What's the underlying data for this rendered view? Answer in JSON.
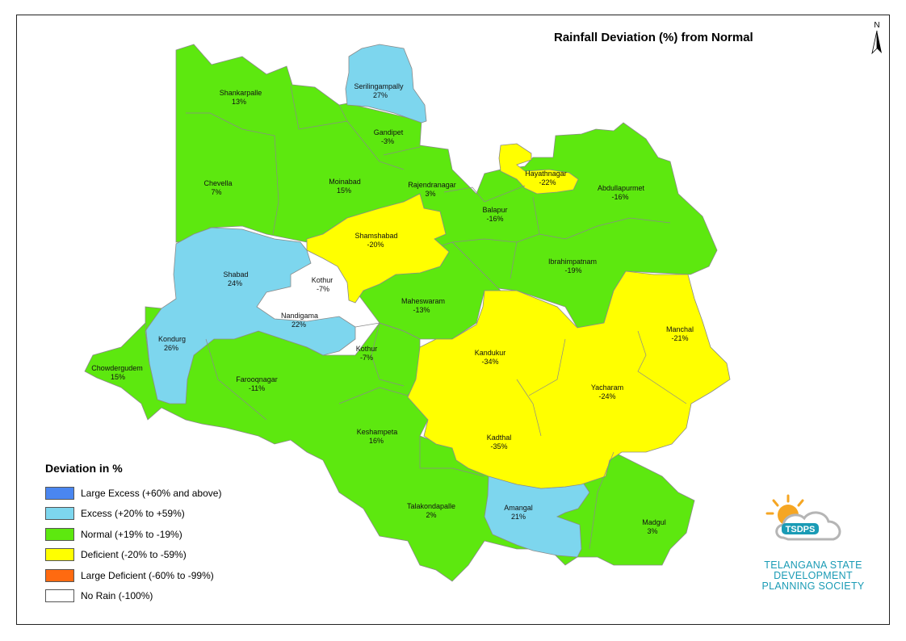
{
  "title": "Rainfall Deviation (%) from Normal",
  "north_label": "N",
  "colors": {
    "large_excess": "#4a86f0",
    "excess": "#7dd6ee",
    "normal": "#5de80f",
    "deficient": "#ffff00",
    "large_deficient": "#ff6a10",
    "no_rain": "#ffffff",
    "boundary": "#8a8a8a"
  },
  "legend": {
    "title": "Deviation in %",
    "items": [
      {
        "label": "Large Excess (+60% and above)",
        "color": "#4a86f0"
      },
      {
        "label": "Excess (+20% to +59%)",
        "color": "#7dd6ee"
      },
      {
        "label": "Normal (+19% to -19%)",
        "color": "#5de80f"
      },
      {
        "label": "Deficient (-20% to -59%)",
        "color": "#ffff00"
      },
      {
        "label": "Large Deficient (-60% to -99%)",
        "color": "#ff6a10"
      },
      {
        "label": "No Rain (-100%)",
        "color": "#ffffff"
      }
    ]
  },
  "mandals": [
    {
      "name": "Serilingampally",
      "value": "27%"
    },
    {
      "name": "Shankarpalle",
      "value": "13%"
    },
    {
      "name": "Gandipet",
      "value": "-3%"
    },
    {
      "name": "Chevella",
      "value": "7%"
    },
    {
      "name": "Moinabad",
      "value": "15%"
    },
    {
      "name": "Rajendranagar",
      "value": "3%"
    },
    {
      "name": "Hayathnagar",
      "value": "-22%"
    },
    {
      "name": "Abdullapurmet",
      "value": "-16%"
    },
    {
      "name": "Balapur",
      "value": "-16%"
    },
    {
      "name": "Shamshabad",
      "value": "-20%"
    },
    {
      "name": "Ibrahimpatnam",
      "value": "-19%"
    },
    {
      "name": "Shabad",
      "value": "24%"
    },
    {
      "name": "Kothur",
      "value": "-7%"
    },
    {
      "name": "Maheswaram",
      "value": "-13%"
    },
    {
      "name": "Nandigama",
      "value": "22%"
    },
    {
      "name": "Manchal",
      "value": "-21%"
    },
    {
      "name": "Kondurg",
      "value": "26%"
    },
    {
      "name": "Kothur",
      "value": "-7%"
    },
    {
      "name": "Kandukur",
      "value": "-34%"
    },
    {
      "name": "Chowdergudem",
      "value": "15%"
    },
    {
      "name": "Farooqnagar",
      "value": "-11%"
    },
    {
      "name": "Yacharam",
      "value": "-24%"
    },
    {
      "name": "Keshampeta",
      "value": "16%"
    },
    {
      "name": "Kadthal",
      "value": "-35%"
    },
    {
      "name": "Talakondapalle",
      "value": "2%"
    },
    {
      "name": "Amangal",
      "value": "21%"
    },
    {
      "name": "Madgul",
      "value": "3%"
    }
  ],
  "logo": {
    "acronym": "TSDPS",
    "line1": "TELANGANA STATE",
    "line2": "DEVELOPMENT",
    "line3": "PLANNING SOCIETY"
  }
}
